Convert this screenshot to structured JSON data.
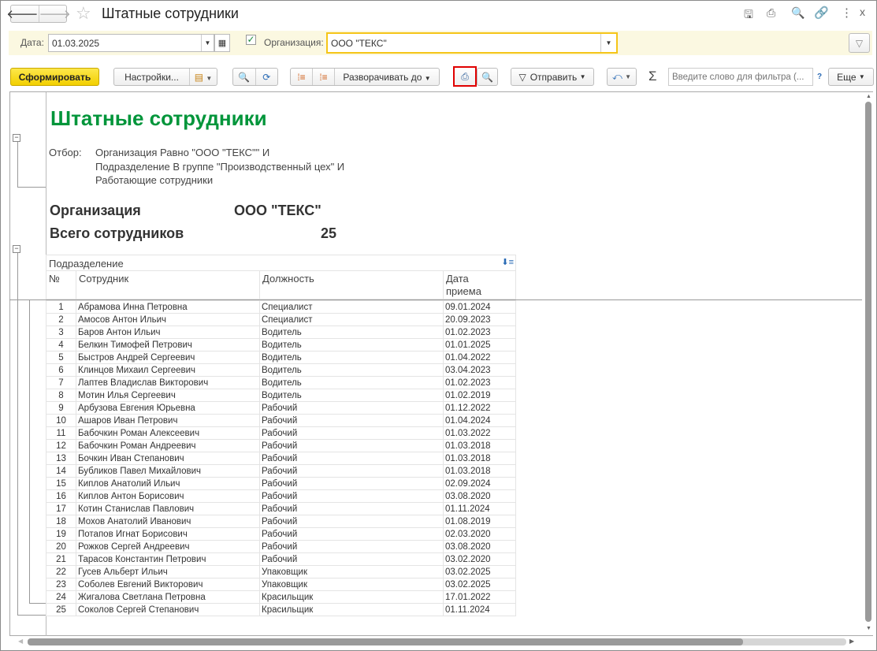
{
  "window": {
    "title": "Штатные сотрудники",
    "icons": [
      "back-arrow-icon",
      "forward-arrow-icon",
      "star-icon",
      "save-icon",
      "print-icon",
      "preview-icon",
      "link-icon",
      "more-icon",
      "close-icon"
    ]
  },
  "filters": {
    "date_label": "Дата:",
    "date_value": "01.03.2025",
    "org_checked": true,
    "org_label": "Организация:",
    "org_value": "ООО \"ТЕКС\""
  },
  "toolbar": {
    "generate": "Сформировать",
    "settings": "Настройки...",
    "expand_to": "Разворачивать до",
    "send": "Отправить",
    "sigma": "Σ",
    "search_placeholder": "Введите слово для фильтра (...",
    "help": "?",
    "more": "Еще",
    "accent_color": "#f5d90a",
    "highlight_color": "#e00000"
  },
  "report": {
    "title": "Штатные сотрудники",
    "title_color": "#00953a",
    "filter_label": "Отбор:",
    "filter_lines": [
      "Организация Равно \"ООО \"ТЕКС\"\" И",
      "Подразделение В группе \"Производственный цех\" И",
      "Работающие сотрудники"
    ],
    "org_label": "Организация",
    "org_value": "ООО \"ТЕКС\"",
    "total_label": "Всего сотрудников",
    "total_value": "25",
    "group_header": "Подразделение",
    "columns": [
      "№",
      "Сотрудник",
      "Должность",
      "Дата приема"
    ],
    "rows": [
      [
        "1",
        "Абрамова Инна Петровна",
        "Специалист",
        "09.01.2024"
      ],
      [
        "2",
        "Амосов Антон Ильич",
        "Специалист",
        "20.09.2023"
      ],
      [
        "3",
        "Баров Антон Ильич",
        "Водитель",
        "01.02.2023"
      ],
      [
        "4",
        "Белкин Тимофей Петрович",
        "Водитель",
        "01.01.2025"
      ],
      [
        "5",
        "Быстров Андрей Сергеевич",
        "Водитель",
        "01.04.2022"
      ],
      [
        "6",
        "Клинцов Михаил Сергеевич",
        "Водитель",
        "03.04.2023"
      ],
      [
        "7",
        "Лаптев Владислав Викторович",
        "Водитель",
        "01.02.2023"
      ],
      [
        "8",
        "Мотин Илья Сергеевич",
        "Водитель",
        "01.02.2019"
      ],
      [
        "9",
        "Арбузова Евгения Юрьевна",
        "Рабочий",
        "01.12.2022"
      ],
      [
        "10",
        "Ашаров Иван Петрович",
        "Рабочий",
        "01.04.2024"
      ],
      [
        "11",
        "Бабочкин Роман Алексеевич",
        "Рабочий",
        "01.03.2022"
      ],
      [
        "12",
        "Бабочкин Роман Андреевич",
        "Рабочий",
        "01.03.2018"
      ],
      [
        "13",
        "Бочкин Иван Степанович",
        "Рабочий",
        "01.03.2018"
      ],
      [
        "14",
        "Бубликов Павел Михайлович",
        "Рабочий",
        "01.03.2018"
      ],
      [
        "15",
        "Киплов Анатолий Ильич",
        "Рабочий",
        "02.09.2024"
      ],
      [
        "16",
        "Киплов Антон Борисович",
        "Рабочий",
        "03.08.2020"
      ],
      [
        "17",
        "Котин Станислав Павлович",
        "Рабочий",
        "01.11.2024"
      ],
      [
        "18",
        "Мохов Анатолий Иванович",
        "Рабочий",
        "01.08.2019"
      ],
      [
        "19",
        "Потапов Игнат Борисович",
        "Рабочий",
        "02.03.2020"
      ],
      [
        "20",
        "Рожков Сергей Андреевич",
        "Рабочий",
        "03.08.2020"
      ],
      [
        "21",
        "Тарасов Константин Петрович",
        "Рабочий",
        "03.02.2020"
      ],
      [
        "22",
        "Гусев Альберт Ильич",
        "Упаковщик",
        "03.02.2025"
      ],
      [
        "23",
        "Соболев Евгений Викторович",
        "Упаковщик",
        "03.02.2025"
      ],
      [
        "24",
        "Жигалова Светлана Петровна",
        "Красильщик",
        "17.01.2022"
      ],
      [
        "25",
        "Соколов Сергей Степанович",
        "Красильщик",
        "01.11.2024"
      ]
    ]
  }
}
